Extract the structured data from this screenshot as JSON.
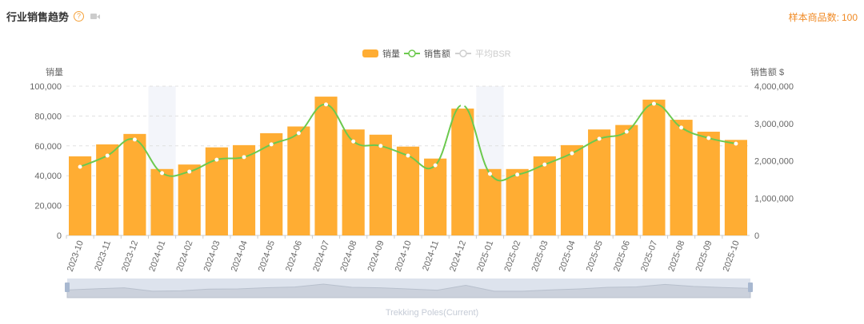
{
  "header": {
    "title": "行业销售趋势",
    "help_icon": "?",
    "sample_label": "样本商品数:",
    "sample_count": "100"
  },
  "colors": {
    "bar": "#ffad33",
    "line": "#6cc94e",
    "bsr": "#d0d0d0",
    "band": "#f3f5fa"
  },
  "chart_data": {
    "type": "bar",
    "legend": [
      "销量",
      "销售额",
      "平均BSR"
    ],
    "legend_placement": "top-center",
    "ylabel_left": "销量",
    "ylabel_right": "销售额 $",
    "ylim_left": [
      0,
      100000
    ],
    "ylim_right": [
      0,
      4000000
    ],
    "yticks_left": [
      "0",
      "20,000",
      "40,000",
      "60,000",
      "80,000",
      "100,000"
    ],
    "yticks_right": [
      "0",
      "1,000,000",
      "2,000,000",
      "3,000,000",
      "4,000,000"
    ],
    "categories": [
      "2023-10",
      "2023-11",
      "2023-12",
      "2024-01",
      "2024-02",
      "2024-03",
      "2024-04",
      "2024-05",
      "2024-06",
      "2024-07",
      "2024-08",
      "2024-09",
      "2024-10",
      "2024-11",
      "2024-12",
      "2025-01",
      "2025-02",
      "2025-03",
      "2025-04",
      "2025-05",
      "2025-06",
      "2025-07",
      "2025-08",
      "2025-09",
      "2025-10"
    ],
    "highlighted_categories": [
      "2024-01",
      "2025-01"
    ],
    "series": [
      {
        "name": "销量",
        "type": "bar",
        "axis": "left",
        "values": [
          53000,
          61000,
          68000,
          44500,
          47500,
          59000,
          60500,
          68500,
          73000,
          93000,
          71000,
          67500,
          59500,
          51500,
          85000,
          44500,
          44500,
          53000,
          60500,
          71000,
          74000,
          91000,
          77500,
          69500,
          64000
        ]
      },
      {
        "name": "销售额",
        "type": "line",
        "axis": "right",
        "values": [
          1840000,
          2140000,
          2570000,
          1670000,
          1710000,
          2030000,
          2100000,
          2440000,
          2740000,
          3510000,
          2520000,
          2400000,
          2140000,
          1880000,
          3490000,
          1650000,
          1630000,
          1900000,
          2200000,
          2590000,
          2780000,
          3530000,
          2890000,
          2610000,
          2460000
        ]
      }
    ],
    "datazoom_label": "Trekking Poles(Current)"
  }
}
